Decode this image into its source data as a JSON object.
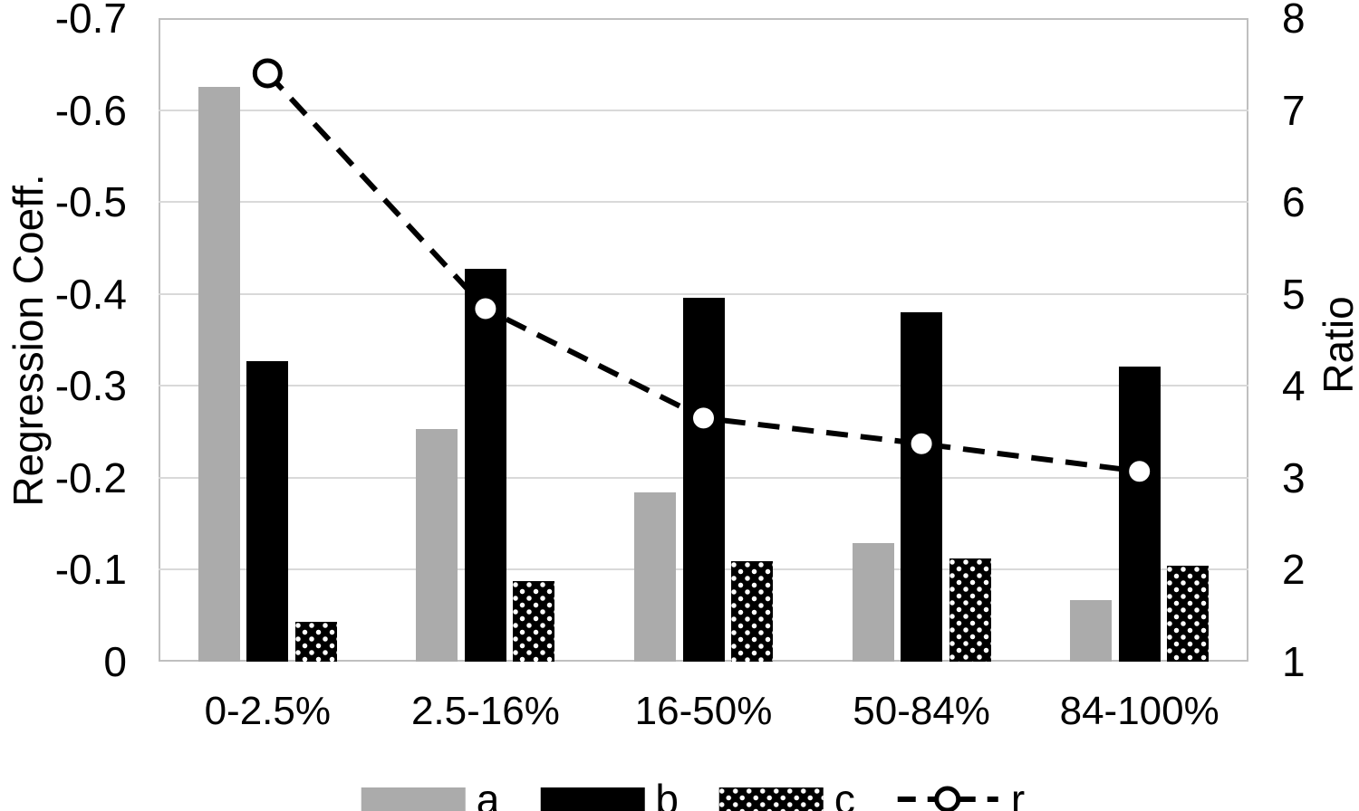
{
  "chart_data": {
    "type": "bar",
    "subtype": "grouped-bar-with-dashed-line-overlay",
    "categories": [
      "0-2.5%",
      "2.5-16%",
      "16-50%",
      "50-84%",
      "84-100%"
    ],
    "series": [
      {
        "name": "a",
        "axis": "left",
        "style": "solid-gray",
        "values": [
          -0.625,
          -0.253,
          -0.184,
          -0.129,
          -0.067
        ]
      },
      {
        "name": "b",
        "axis": "left",
        "style": "solid-black",
        "values": [
          -0.327,
          -0.427,
          -0.396,
          -0.38,
          -0.321
        ]
      },
      {
        "name": "c",
        "axis": "left",
        "style": "black-with-white-dots",
        "values": [
          -0.043,
          -0.088,
          -0.109,
          -0.112,
          -0.104
        ]
      }
    ],
    "line_series": {
      "name": "r",
      "axis": "right",
      "style": "black-dashed-line-open-circle-markers",
      "values": [
        7.4,
        4.84,
        3.65,
        3.37,
        3.07
      ]
    },
    "left_axis": {
      "title": "Regression Coeff.",
      "ticks": [
        "-0.7",
        "-0.6",
        "-0.5",
        "-0.4",
        "-0.3",
        "-0.2",
        "-0.1",
        "0"
      ],
      "top_value": -0.7,
      "bottom_value": 0
    },
    "right_axis": {
      "title": "Ratio",
      "ticks": [
        "8",
        "7",
        "6",
        "5",
        "4",
        "3",
        "2",
        "1"
      ],
      "top_value": 8,
      "bottom_value": 1
    },
    "grid": true,
    "legend_position": "bottom",
    "legend": [
      "a",
      "b",
      "c",
      "r"
    ],
    "colors": {
      "bar_a": "#ababab",
      "bar_b": "#000000",
      "bar_c_fill": "#000000",
      "bar_c_dots": "#ffffff",
      "line_r": "#000000",
      "marker_fill": "#ffffff",
      "gridline": "#d9d9d9",
      "plot_border": "#bfbfbf",
      "text": "#000000",
      "background": "#ffffff"
    }
  }
}
